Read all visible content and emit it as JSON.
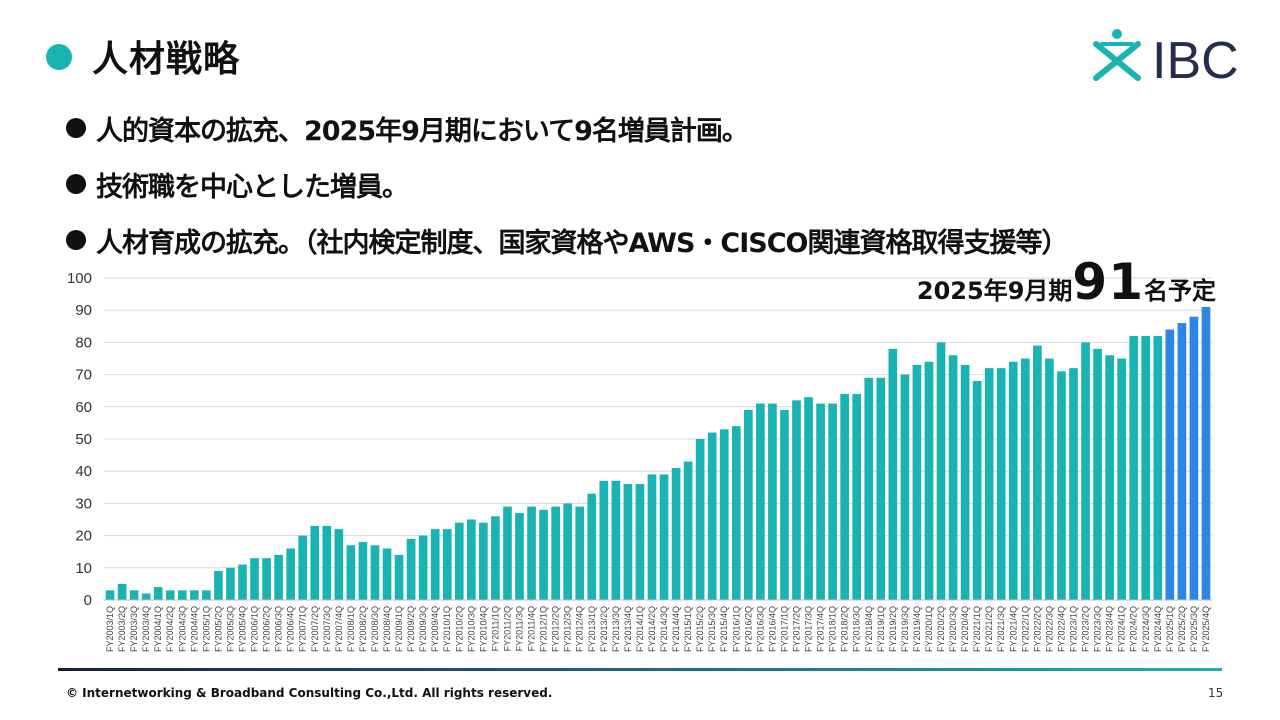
{
  "slide": {
    "title": "人材戦略",
    "logo_text": "IBC",
    "bullets": [
      "人的資本の拡充、2025年9月期において9名増員計画。",
      "技術職を中心とした増員。",
      "人材育成の拡充。（社内検定制度、国家資格やAWS・CISCO関連資格取得支援等）"
    ],
    "callout": {
      "prefix": "2025年9月期",
      "number": "91",
      "suffix": "名予定"
    },
    "footer": "© Internetworking & Broadband Consulting Co.,Ltd. All rights reserved.",
    "page_number": "15"
  },
  "colors": {
    "accent": "#1ab3b3",
    "forecast": "#2b86e8",
    "logo_text": "#252c4d"
  },
  "chart_data": {
    "type": "bar",
    "title": "",
    "xlabel": "",
    "ylabel": "",
    "ylim": [
      0,
      100
    ],
    "yticks": [
      0,
      10,
      20,
      30,
      40,
      50,
      60,
      70,
      80,
      90,
      100
    ],
    "grid": true,
    "categories": [
      "FY2003/1Q",
      "FY2003/2Q",
      "FY2003/3Q",
      "FY2003/4Q",
      "FY2004/1Q",
      "FY2004/2Q",
      "FY2004/3Q",
      "FY2004/4Q",
      "FY2005/1Q",
      "FY2005/2Q",
      "FY2005/3Q",
      "FY2005/4Q",
      "FY2006/1Q",
      "FY2006/2Q",
      "FY2006/3Q",
      "FY2006/4Q",
      "FY2007/1Q",
      "FY2007/2Q",
      "FY2007/3Q",
      "FY2007/4Q",
      "FY2008/1Q",
      "FY2008/2Q",
      "FY2008/3Q",
      "FY2008/4Q",
      "FY2009/1Q",
      "FY2009/2Q",
      "FY2009/3Q",
      "FY2009/4Q",
      "FY2010/1Q",
      "FY2010/2Q",
      "FY2010/3Q",
      "FY2010/4Q",
      "FY2011/1Q",
      "FY2011/2Q",
      "FY2011/3Q",
      "FY2011/4Q",
      "FY2012/1Q",
      "FY2012/2Q",
      "FY2012/3Q",
      "FY2012/4Q",
      "FY2013/1Q",
      "FY2013/2Q",
      "FY2013/3Q",
      "FY2013/4Q",
      "FY2014/1Q",
      "FY2014/2Q",
      "FY2014/3Q",
      "FY2014/4Q",
      "FY2015/1Q",
      "FY2015/2Q",
      "FY2015/3Q",
      "FY2015/4Q",
      "FY2016/1Q",
      "FY2016/2Q",
      "FY2016/3Q",
      "FY2016/4Q",
      "FY2017/1Q",
      "FY2017/2Q",
      "FY2017/3Q",
      "FY2017/4Q",
      "FY2018/1Q",
      "FY2018/2Q",
      "FY2018/3Q",
      "FY2018/4Q",
      "FY2019/1Q",
      "FY2019/2Q",
      "FY2019/3Q",
      "FY2019/4Q",
      "FY2020/1Q",
      "FY2020/2Q",
      "FY2020/3Q",
      "FY2020/4Q",
      "FY2021/1Q",
      "FY2021/2Q",
      "FY2021/3Q",
      "FY2021/4Q",
      "FY2022/1Q",
      "FY2022/2Q",
      "FY2022/3Q",
      "FY2022/4Q",
      "FY2023/1Q",
      "FY2023/2Q",
      "FY2023/3Q",
      "FY2023/4Q",
      "FY2024/1Q",
      "FY2024/2Q",
      "FY2024/3Q",
      "FY2024/4Q",
      "FY2025/1Q",
      "FY2025/2Q",
      "FY2025/3Q",
      "FY2025/4Q"
    ],
    "values": [
      3,
      5,
      3,
      2,
      4,
      3,
      3,
      3,
      3,
      9,
      10,
      11,
      13,
      13,
      14,
      16,
      20,
      23,
      23,
      22,
      17,
      18,
      17,
      16,
      14,
      19,
      20,
      22,
      22,
      24,
      25,
      24,
      26,
      29,
      27,
      29,
      28,
      29,
      30,
      29,
      33,
      37,
      37,
      36,
      36,
      39,
      39,
      41,
      43,
      50,
      52,
      53,
      54,
      59,
      61,
      61,
      59,
      62,
      63,
      61,
      61,
      64,
      64,
      69,
      69,
      78,
      70,
      73,
      74,
      80,
      76,
      73,
      68,
      72,
      72,
      74,
      75,
      79,
      75,
      71,
      72,
      80,
      78,
      76,
      75,
      82,
      82,
      82,
      84,
      86,
      88,
      91
    ],
    "forecast_from_index": 88
  }
}
